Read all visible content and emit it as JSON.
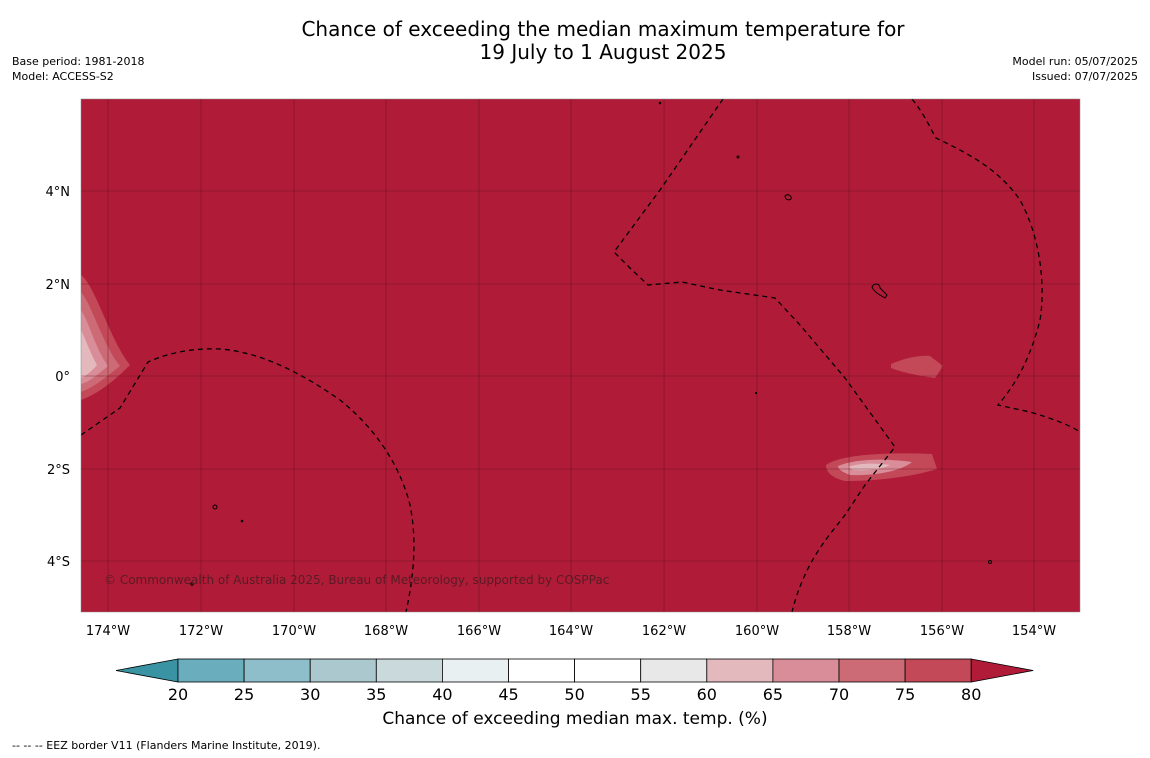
{
  "title": {
    "line1": "Chance of exceeding the median maximum temperature for",
    "line2": "19 July to 1 August 2025"
  },
  "meta_left": {
    "base_period": "Base period: 1981-2018",
    "model": "Model: ACCESS-S2"
  },
  "meta_right": {
    "model_run": "Model run: 05/07/2025",
    "issued": "Issued: 07/07/2025"
  },
  "map": {
    "lat_labels": [
      "4°N",
      "2°N",
      "0°",
      "2°S",
      "4°S"
    ],
    "lon_labels": [
      "174°W",
      "172°W",
      "170°W",
      "168°W",
      "166°W",
      "164°W",
      "162°W",
      "160°W",
      "158°W",
      "156°W",
      "154°W"
    ],
    "copyright": "© Commonwealth of Australia 2025, Bureau of Meteorology, supported by COSPPac",
    "background_color": "#b01c38",
    "dominant_category": "80"
  },
  "colorbar": {
    "ticks": [
      "20",
      "25",
      "30",
      "35",
      "40",
      "45",
      "50",
      "55",
      "60",
      "65",
      "70",
      "75",
      "80"
    ],
    "colors": [
      "#3a93a3",
      "#6aaebe",
      "#8ebec9",
      "#abc8ce",
      "#c9d9dc",
      "#e8f0f1",
      "#ffffff",
      "#ffffff",
      "#e8e8e8",
      "#e3b9be",
      "#d98d98",
      "#cc6b76",
      "#c34858",
      "#b01c38"
    ],
    "title": "Chance of exceeding median max. temp. (%)"
  },
  "footnote": "-- -- -- EEZ border V11 (Flanders Marine Institute, 2019)."
}
